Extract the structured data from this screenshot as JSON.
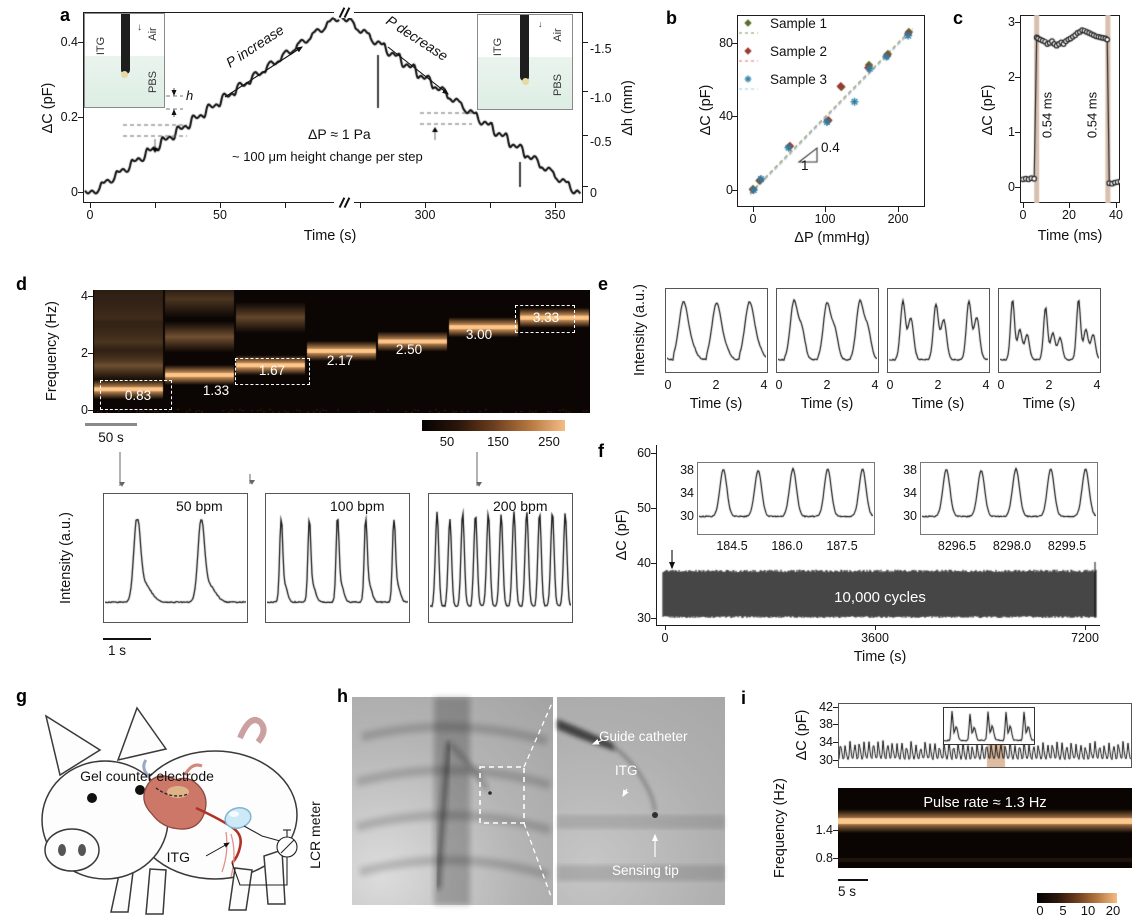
{
  "colors": {
    "accent_orange": "#f2a963",
    "spect_bg": "#0b0604",
    "tan_band": "#d8bfae",
    "highlight": "#d7b090",
    "sample1": "#5a6e2a",
    "sample2": "#9c3832",
    "sample3": "#2e7fa3",
    "fit1": "#7fae6a",
    "fit2": "#e08a80",
    "fit3": "#a8d4e8",
    "pbs_fill": "#e4f1e8",
    "electrode_blue": "#cfe9f6"
  },
  "panels": {
    "a": {
      "label": "a",
      "ylabel": "ΔC (pF)",
      "ylabel_right": "Δh (mm)",
      "xlabel": "Time (s)",
      "yticks": [
        "0.4",
        "0.2",
        "0"
      ],
      "yticks_right": [
        "-1.5",
        "-1.0",
        "-0.5",
        "0"
      ],
      "xticks": [
        "0",
        "50",
        "300",
        "350"
      ],
      "p_increase": "P increase",
      "p_decrease": "P decrease",
      "dp": "ΔP ≈ 1 Pa",
      "step_note": "~ 100 μm height change per step",
      "h": "h",
      "inset": {
        "itg": "ITG",
        "air": "Air",
        "pbs": "PBS"
      }
    },
    "b": {
      "label": "b",
      "ylabel": "ΔC (pF)",
      "xlabel": "ΔP (mmHg)",
      "yticks": [
        "80",
        "40",
        "0"
      ],
      "xticks": [
        "0",
        "100",
        "200"
      ],
      "legend": [
        "Sample 1",
        "Sample 2",
        "Sample 3"
      ],
      "slope_rise": "0.4",
      "slope_run": "1"
    },
    "c": {
      "label": "c",
      "ylabel": "ΔC (pF)",
      "xlabel": "Time (ms)",
      "yticks": [
        "3",
        "2",
        "1",
        "0"
      ],
      "xticks": [
        "0",
        "20",
        "40"
      ],
      "response": "0.54 ms"
    },
    "d": {
      "label": "d",
      "ylabel": "Frequency (Hz)",
      "yticks": [
        "4",
        "2",
        "0"
      ],
      "freq_labels": [
        "0.83",
        "1.33",
        "1.67",
        "2.17",
        "2.50",
        "3.00",
        "3.33"
      ],
      "colorbar_ticks": [
        "50",
        "150",
        "250"
      ],
      "scalebar": "50 s",
      "traces_ylabel": "Intensity (a.u.)",
      "trace_scalebar": "1 s",
      "bpm_labels": [
        "50 bpm",
        "100 bpm",
        "200 bpm"
      ]
    },
    "e": {
      "label": "e",
      "ylabel": "Intensity (a.u.)",
      "xlabel": "Time (s)",
      "xticks": [
        "0",
        "2",
        "4"
      ]
    },
    "f": {
      "label": "f",
      "ylabel": "ΔC (pF)",
      "xlabel": "Time (s)",
      "yticks": [
        "60",
        "50",
        "40",
        "30"
      ],
      "xticks": [
        "0",
        "3600",
        "7200"
      ],
      "cycles_label": "10,000 cycles",
      "inset_yticks": [
        "38",
        "34",
        "30"
      ],
      "inset1_xticks": [
        "184.5",
        "186.0",
        "187.5"
      ],
      "inset2_xticks": [
        "8296.5",
        "8298.0",
        "8299.5"
      ]
    },
    "g": {
      "label": "g",
      "electrode_label": "Gel counter electrode",
      "itg_label": "ITG",
      "meter_label": "LCR meter"
    },
    "h": {
      "label": "h",
      "guide_label": "Guide catheter",
      "itg_label": "ITG",
      "tip_label": "Sensing tip"
    },
    "i": {
      "label": "i",
      "ylabel_top": "ΔC (pF)",
      "yticks_top": [
        "42",
        "38",
        "34",
        "30"
      ],
      "ylabel_bottom": "Frequency (Hz)",
      "yticks_bottom": [
        "1.4",
        "0.8"
      ],
      "pulse_label": "Pulse rate ≈ 1.3 Hz",
      "scalebar": "5 s",
      "colorbar_ticks": [
        "0",
        "5",
        "10",
        "20"
      ]
    }
  },
  "chart_data": [
    {
      "id": "a",
      "type": "line",
      "xlabel": "Time (s)",
      "ylabel_left": "ΔC (pF)",
      "ylabel_right": "Δh (mm)",
      "ylim": [
        0,
        0.5
      ],
      "yticks_left": [
        0,
        0.2,
        0.4
      ],
      "yticks_right": [
        0,
        -0.5,
        -1.0,
        -1.5
      ],
      "xticks": [
        0,
        50,
        300,
        350
      ],
      "axis_break": [
        117,
        267
      ],
      "steps_up": 16,
      "steps_down": 15,
      "step_pF": 0.0287,
      "peak_pF": 0.459,
      "pressure_step_Pa": 1,
      "height_change_um_per_step": 100
    },
    {
      "id": "b",
      "type": "scatter",
      "xlabel": "ΔP (mmHg)",
      "ylabel": "ΔC (pF)",
      "xticks": [
        0,
        100,
        200
      ],
      "yticks": [
        0,
        40,
        80
      ],
      "fit_slope": 0.4,
      "series": [
        {
          "name": "Sample 1",
          "color": "#5a6e2a",
          "x": [
            0,
            9,
            50,
            103,
            122,
            160,
            186,
            215
          ],
          "y": [
            0.5,
            5,
            23.5,
            37.5,
            56,
            68,
            74,
            86
          ]
        },
        {
          "name": "Sample 2",
          "color": "#9c3832",
          "x": [
            0,
            10,
            51,
            104,
            121,
            159,
            185,
            214
          ],
          "y": [
            0.2,
            5.5,
            24,
            38,
            56.5,
            66.5,
            73,
            85
          ]
        },
        {
          "name": "Sample 3",
          "color": "#2e7fa3",
          "x": [
            1,
            11,
            49,
            102,
            140,
            161,
            184,
            214
          ],
          "y": [
            0,
            6,
            23,
            37,
            48,
            66,
            72.5,
            84
          ]
        }
      ]
    },
    {
      "id": "c",
      "type": "line",
      "xlabel": "Time (ms)",
      "ylabel": "ΔC (pF)",
      "xticks": [
        0,
        20,
        40
      ],
      "yticks": [
        0,
        1,
        2,
        3
      ],
      "response_ms": 0.54,
      "band_x": [
        5.9,
        36.6
      ],
      "x": [
        0,
        1.2,
        2.4,
        3.6,
        4.8,
        5.9,
        6.5,
        7.5,
        8.5,
        9.5,
        10.5,
        11.5,
        12.5,
        13.5,
        14.5,
        15.5,
        16.5,
        17.5,
        18.5,
        19.5,
        20.5,
        21.5,
        22.5,
        23.5,
        24.5,
        25.5,
        26.5,
        27.5,
        28.5,
        29.5,
        30.5,
        31.5,
        32.5,
        33.5,
        34.5,
        35.5,
        36.3,
        37.2,
        38.4,
        39.6,
        40.8,
        42,
        43
      ],
      "y": [
        0.14,
        0.15,
        0.14,
        0.16,
        0.15,
        2.72,
        2.7,
        2.68,
        2.66,
        2.64,
        2.6,
        2.62,
        2.65,
        2.6,
        2.57,
        2.6,
        2.63,
        2.6,
        2.65,
        2.68,
        2.7,
        2.73,
        2.76,
        2.8,
        2.82,
        2.85,
        2.84,
        2.82,
        2.8,
        2.78,
        2.76,
        2.74,
        2.73,
        2.72,
        2.71,
        2.7,
        2.68,
        0.07,
        0.06,
        0.08,
        0.09,
        0.1,
        0.11
      ]
    },
    {
      "id": "d_spec",
      "type": "heatmap",
      "ylabel": "Frequency (Hz)",
      "ylim": [
        0,
        4.3
      ],
      "yticks": [
        0,
        2,
        4
      ],
      "segments": [
        {
          "f": 0.83,
          "label": "0.83",
          "boxed": true
        },
        {
          "f": 1.33,
          "label": "1.33",
          "boxed": false
        },
        {
          "f": 1.67,
          "label": "1.67",
          "boxed": true
        },
        {
          "f": 2.17,
          "label": "2.17",
          "boxed": false
        },
        {
          "f": 2.5,
          "label": "2.50",
          "boxed": false
        },
        {
          "f": 3.0,
          "label": "3.00",
          "boxed": false
        },
        {
          "f": 3.33,
          "label": "3.33",
          "boxed": true
        }
      ],
      "colorbar_ticks": [
        50,
        150,
        250
      ],
      "scalebar_s": 50
    },
    {
      "id": "d_traces",
      "type": "line",
      "ylabel": "Intensity (a.u.)",
      "scalebar_s": 1,
      "bpm": [
        50,
        100,
        200
      ],
      "peaks_shown": [
        2,
        5,
        11
      ]
    },
    {
      "id": "e",
      "type": "line",
      "xlabel": "Time (s)",
      "xticks": [
        0,
        2,
        4
      ],
      "ylabel": "Intensity (a.u.)",
      "cycles": 3,
      "waveforms": [
        "smooth",
        "shoulder",
        "double-peak",
        "complex"
      ]
    },
    {
      "id": "f",
      "type": "line",
      "xlabel": "Time (s)",
      "ylabel": "ΔC (pF)",
      "xticks": [
        0,
        3600,
        7200
      ],
      "yticks": [
        30,
        40,
        50,
        60
      ],
      "band_pF": [
        30,
        38.3
      ],
      "cycles": 10000,
      "insets": [
        {
          "xticks": [
            184.5,
            186.0,
            187.5
          ],
          "yticks": [
            30,
            34,
            38
          ],
          "peaks": 5
        },
        {
          "xticks": [
            8296.5,
            8298.0,
            8299.5
          ],
          "yticks": [
            30,
            34,
            38
          ],
          "peaks": 5
        }
      ]
    },
    {
      "id": "i_top",
      "type": "line",
      "ylabel": "ΔC (pF)",
      "yticks": [
        30,
        34,
        38,
        42
      ],
      "osc_range_pF": [
        30.4,
        33.8
      ],
      "pulses": 62
    },
    {
      "id": "i_spec",
      "type": "heatmap",
      "ylabel": "Frequency (Hz)",
      "yticks": [
        0.8,
        1.4
      ],
      "ylim": [
        0.45,
        1.9
      ],
      "band_hz": 1.3,
      "colorbar_ticks": [
        0,
        5,
        10,
        20
      ],
      "scalebar_s": 5
    }
  ]
}
